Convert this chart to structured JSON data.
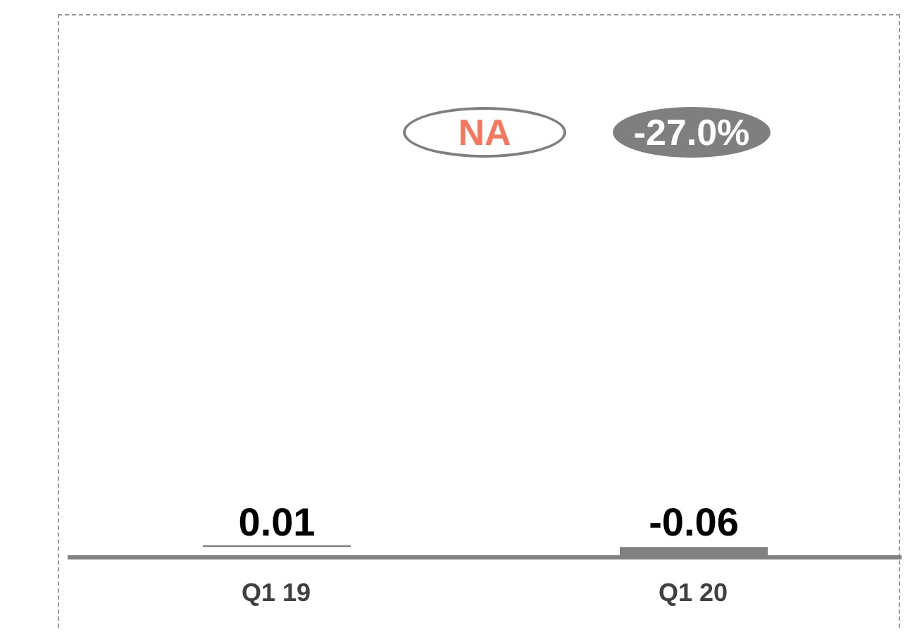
{
  "chart_data": {
    "type": "bar",
    "categories": [
      "Q1 19",
      "Q1 20"
    ],
    "values": [
      0.01,
      -0.06
    ],
    "color": "#808080",
    "data_labels": true,
    "annotations": [
      "NA",
      "-27.0%"
    ]
  }
}
